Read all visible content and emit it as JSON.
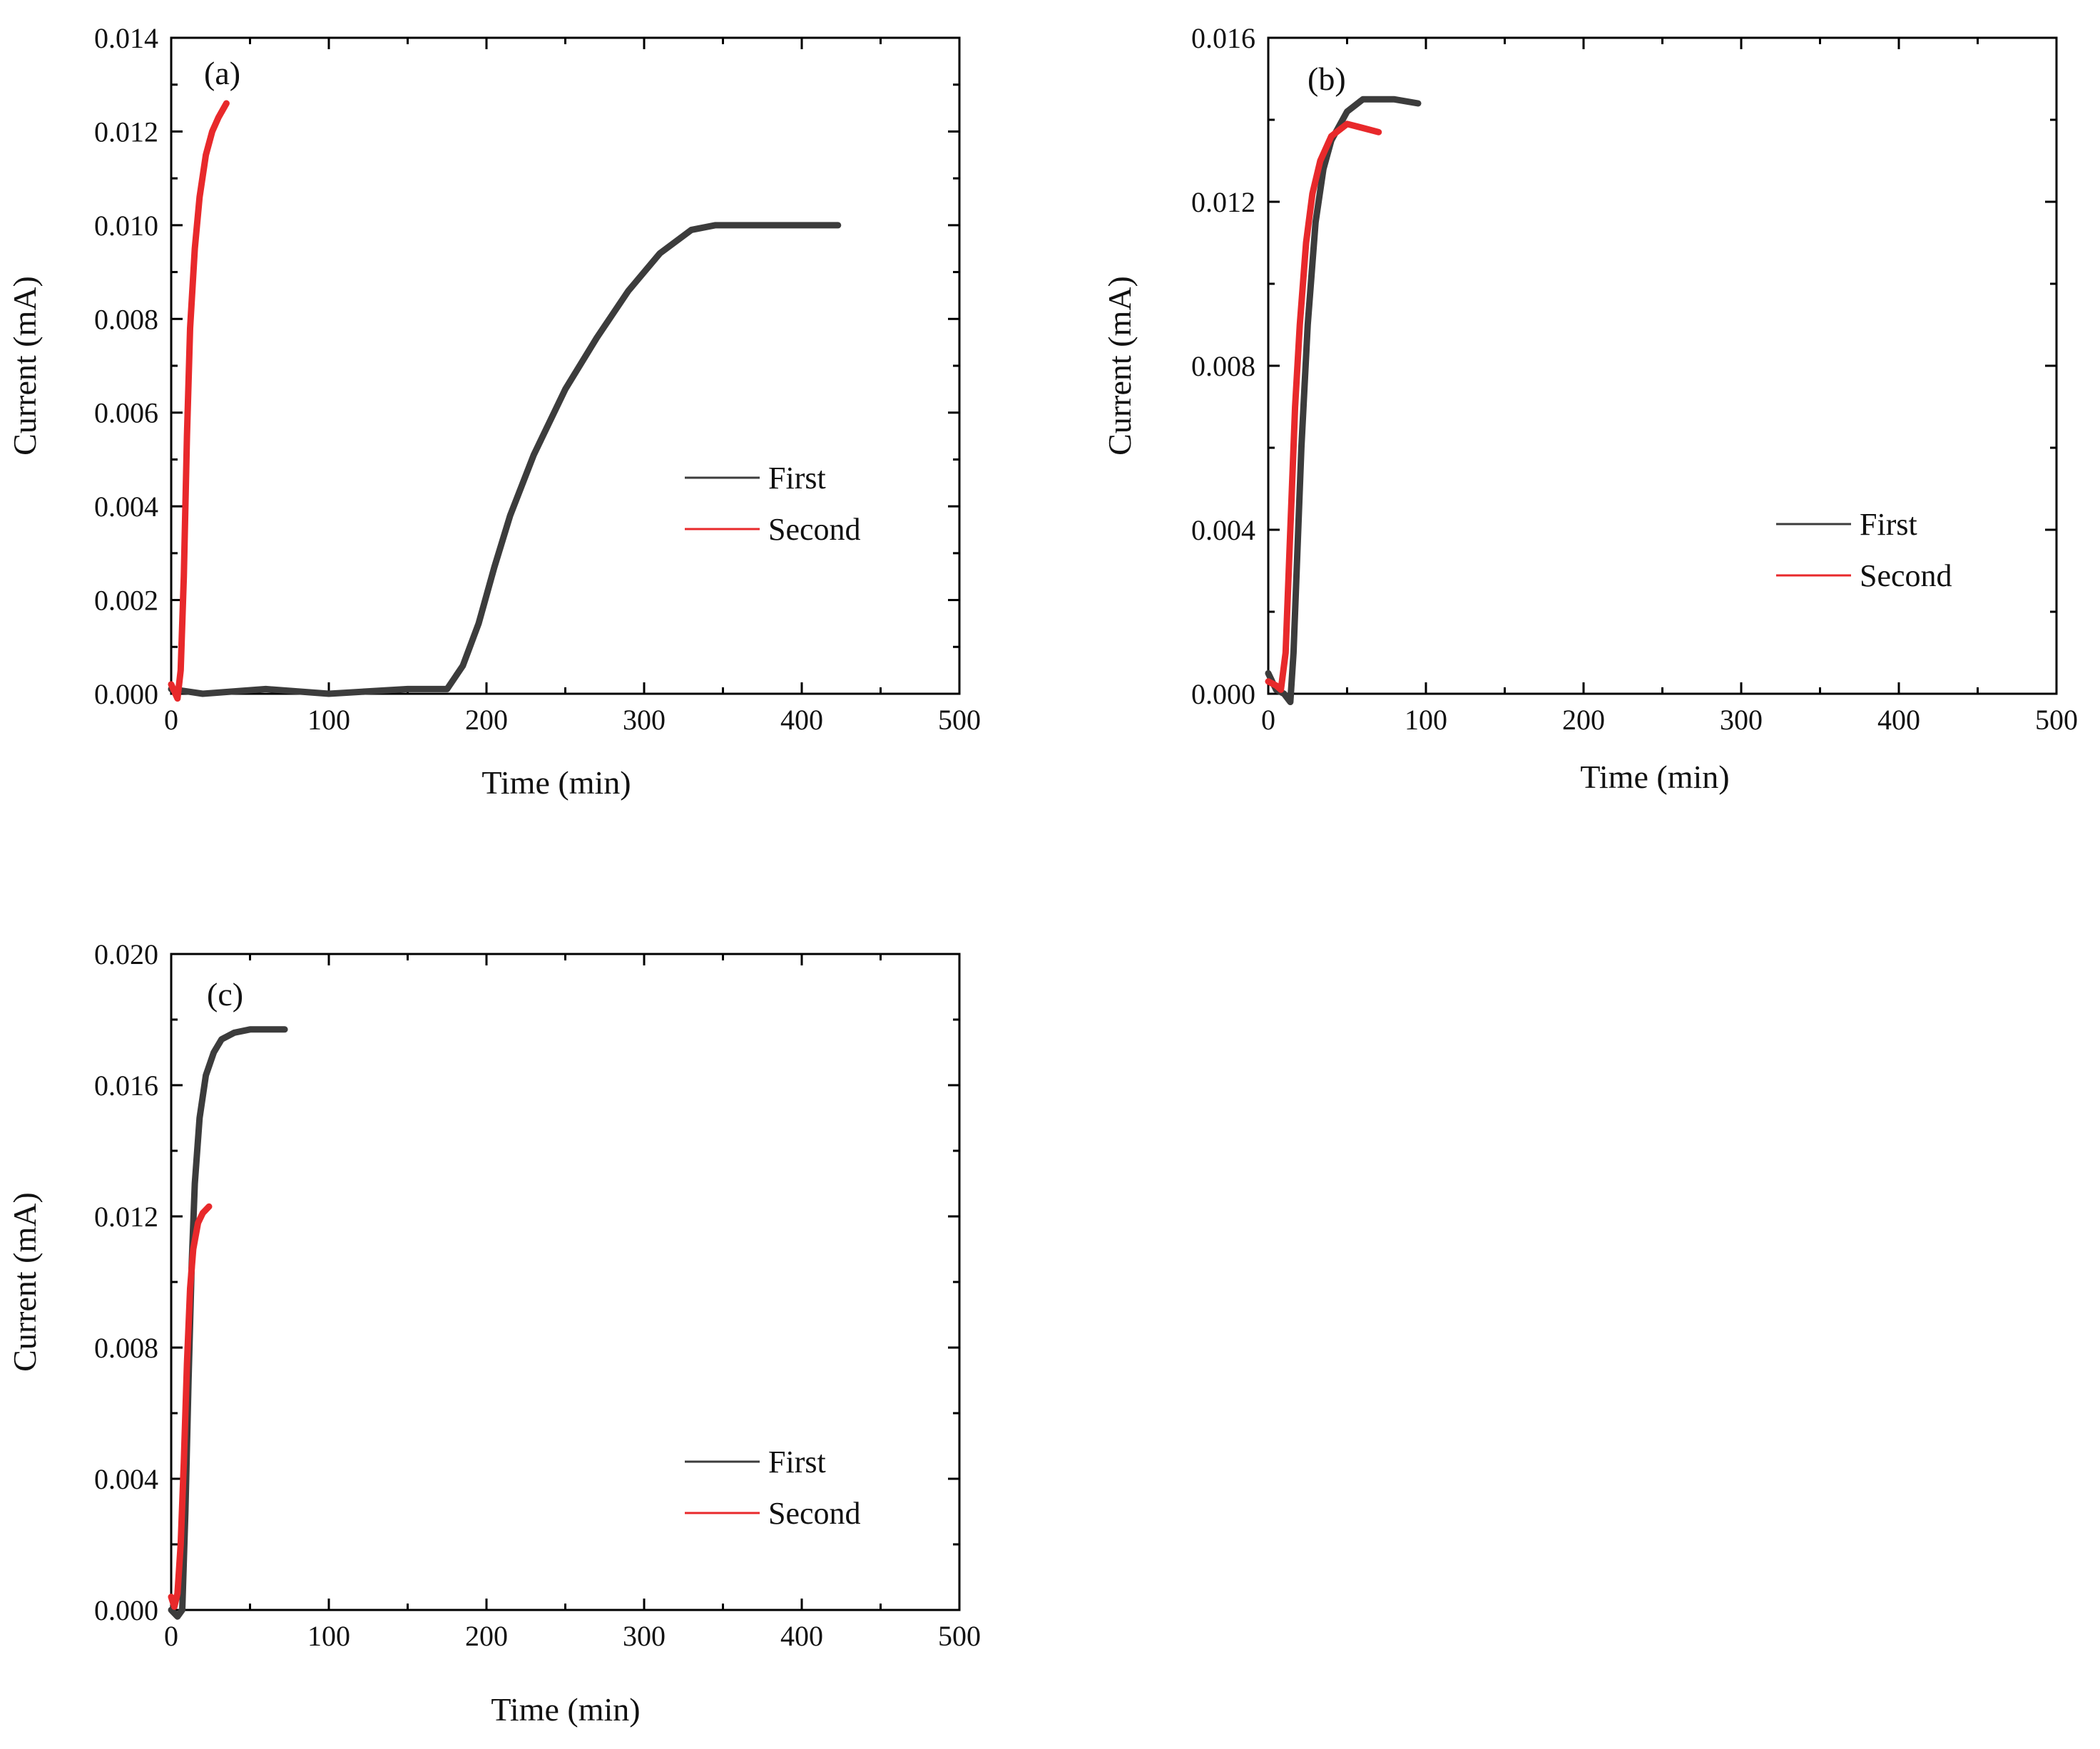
{
  "colors": {
    "first": "#3c3c3c",
    "second": "#e8292b",
    "axis": "#000000"
  },
  "chart_data": [
    {
      "type": "line",
      "panel_label": "(a)",
      "xlabel": "Time (min)",
      "ylabel": "Current (mA)",
      "xlim": [
        0,
        500
      ],
      "ylim": [
        0,
        0.014
      ],
      "xticks": [
        "0",
        "100",
        "200",
        "300",
        "400",
        "500"
      ],
      "yticks": [
        "0.000",
        "0.002",
        "0.004",
        "0.006",
        "0.008",
        "0.010",
        "0.012",
        "0.014"
      ],
      "legend": [
        "First",
        "Second"
      ],
      "series": [
        {
          "name": "First",
          "x": [
            0,
            20,
            60,
            100,
            150,
            175,
            185,
            195,
            205,
            215,
            230,
            250,
            270,
            290,
            310,
            330,
            345,
            380,
            423
          ],
          "y": [
            0.0001,
            0.0,
            0.0001,
            0.0,
            0.0001,
            0.0001,
            0.0006,
            0.0015,
            0.0027,
            0.0038,
            0.0051,
            0.0065,
            0.0076,
            0.0086,
            0.0094,
            0.0099,
            0.01,
            0.01,
            0.01
          ]
        },
        {
          "name": "Second",
          "x": [
            0,
            4,
            6,
            8,
            10,
            12,
            15,
            18,
            22,
            26,
            30,
            35
          ],
          "y": [
            0.0002,
            -0.0001,
            0.0005,
            0.0025,
            0.0055,
            0.0078,
            0.0095,
            0.0106,
            0.0115,
            0.012,
            0.0123,
            0.0126
          ]
        }
      ]
    },
    {
      "type": "line",
      "panel_label": "(b)",
      "xlabel": "Time (min)",
      "ylabel": "Current (mA)",
      "xlim": [
        0,
        500
      ],
      "ylim": [
        0,
        0.016
      ],
      "xticks": [
        "0",
        "100",
        "200",
        "300",
        "400",
        "500"
      ],
      "yticks": [
        "0.000",
        "0.004",
        "0.008",
        "0.012",
        "0.016"
      ],
      "legend": [
        "First",
        "Second"
      ],
      "series": [
        {
          "name": "First",
          "x": [
            0,
            5,
            10,
            14,
            16,
            18,
            21,
            25,
            30,
            35,
            40,
            50,
            60,
            70,
            80,
            95
          ],
          "y": [
            0.0005,
            0.0001,
            0.0,
            -0.0002,
            0.001,
            0.003,
            0.006,
            0.009,
            0.0115,
            0.0128,
            0.0135,
            0.0142,
            0.0145,
            0.0145,
            0.0145,
            0.0144
          ]
        },
        {
          "name": "Second",
          "x": [
            0,
            5,
            8,
            11,
            14,
            17,
            20,
            24,
            28,
            33,
            40,
            50,
            60,
            70
          ],
          "y": [
            0.0003,
            0.0002,
            0.0001,
            0.001,
            0.004,
            0.007,
            0.009,
            0.011,
            0.0122,
            0.013,
            0.0136,
            0.0139,
            0.0138,
            0.0137
          ]
        }
      ]
    },
    {
      "type": "line",
      "panel_label": "(c)",
      "xlabel": "Time (min)",
      "ylabel": "Current (mA)",
      "xlim": [
        0,
        500
      ],
      "ylim": [
        0,
        0.02
      ],
      "xticks": [
        "0",
        "100",
        "200",
        "300",
        "400",
        "500"
      ],
      "yticks": [
        "0.000",
        "0.004",
        "0.008",
        "0.012",
        "0.016",
        "0.020"
      ],
      "legend": [
        "First",
        "Second"
      ],
      "series": [
        {
          "name": "First",
          "x": [
            0,
            4,
            7,
            9,
            11,
            13,
            15,
            18,
            22,
            27,
            32,
            40,
            50,
            60,
            72
          ],
          "y": [
            0.0,
            -0.0002,
            0.0,
            0.003,
            0.007,
            0.0105,
            0.013,
            0.015,
            0.0163,
            0.017,
            0.0174,
            0.0176,
            0.0177,
            0.0177,
            0.0177
          ]
        },
        {
          "name": "Second",
          "x": [
            0,
            2,
            4,
            6,
            8,
            10,
            12,
            14,
            17,
            20,
            24
          ],
          "y": [
            0.0004,
            0.0001,
            0.0005,
            0.002,
            0.0045,
            0.0075,
            0.0098,
            0.011,
            0.0118,
            0.0121,
            0.0123
          ]
        }
      ]
    }
  ]
}
